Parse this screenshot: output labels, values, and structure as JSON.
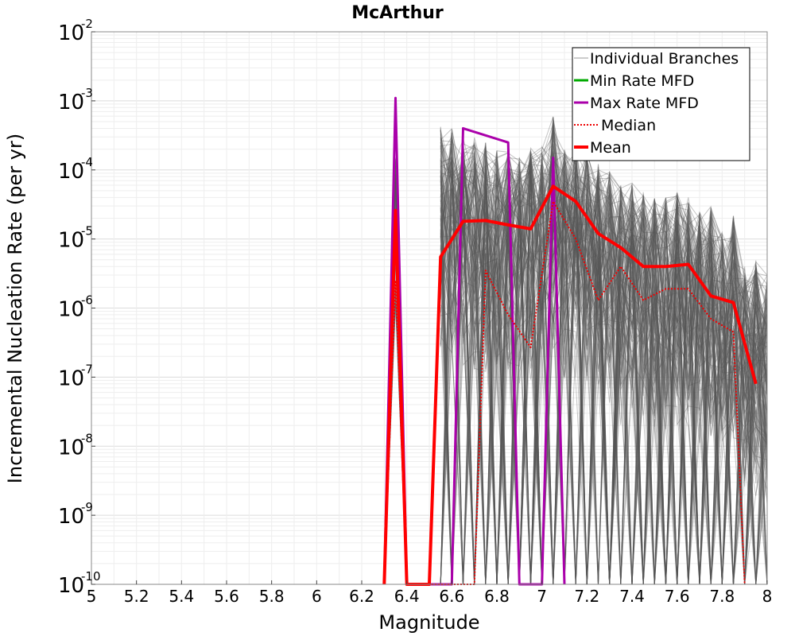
{
  "chart_data": {
    "type": "line",
    "title": "McArthur",
    "xlabel": "Magnitude",
    "ylabel": "Incremental Nucleation Rate (per yr)",
    "xlim": [
      5,
      8
    ],
    "ylim_exponents": [
      -10,
      -2
    ],
    "yscale": "log",
    "x_ticks": [
      "5",
      "5.2",
      "5.4",
      "5.6",
      "5.8",
      "6",
      "6.2",
      "6.4",
      "6.6",
      "6.8",
      "7",
      "7.2",
      "7.4",
      "7.6",
      "7.8",
      "8"
    ],
    "y_tick_base": "10",
    "y_tick_exponents": [
      "-10",
      "-9",
      "-8",
      "-7",
      "-6",
      "-5",
      "-4",
      "-3",
      "-2"
    ],
    "grid": true,
    "legend_position": "top-right",
    "legend": {
      "branches": "Individual Branches",
      "min": "Min Rate MFD",
      "max": "Max Rate MFD",
      "median": "Median",
      "mean": "Mean"
    },
    "colors": {
      "branches": "#555555",
      "branches_legend": "#bbbbbb",
      "min": "#00aa00",
      "max": "#aa00aa",
      "median": "#ee0000",
      "mean": "#ff0000"
    },
    "series": [
      {
        "name": "Max Rate MFD",
        "x": [
          6.3,
          6.35,
          6.4,
          6.6,
          6.65,
          6.85,
          6.9,
          7.0,
          7.05,
          7.1
        ],
        "y": [
          1e-10,
          0.0011,
          1e-10,
          1e-10,
          0.0004,
          0.00025,
          1e-10,
          1e-10,
          0.00015,
          1e-10
        ]
      },
      {
        "name": "Median",
        "x": [
          6.3,
          6.35,
          6.4,
          6.7,
          6.75,
          6.85,
          6.95,
          7.05,
          7.15,
          7.25,
          7.35,
          7.45,
          7.55,
          7.65,
          7.75,
          7.85,
          7.9
        ],
        "y": [
          1e-10,
          2.5e-06,
          1e-10,
          1e-10,
          3.5e-06,
          8e-07,
          2.7e-07,
          3.5e-05,
          1e-05,
          1.3e-06,
          4e-06,
          1.3e-06,
          1.9e-06,
          1.9e-06,
          7e-07,
          4.5e-07,
          1e-10
        ]
      },
      {
        "name": "Mean",
        "x": [
          6.3,
          6.35,
          6.4,
          6.5,
          6.55,
          6.65,
          6.75,
          6.85,
          6.95,
          7.05,
          7.15,
          7.25,
          7.35,
          7.45,
          7.55,
          7.65,
          7.75,
          7.85,
          7.95
        ],
        "y": [
          1e-10,
          2.6e-05,
          1e-10,
          1e-10,
          5.5e-06,
          1.8e-05,
          1.85e-05,
          1.6e-05,
          1.4e-05,
          5.8e-05,
          3.5e-05,
          1.2e-05,
          7.5e-06,
          4e-06,
          4e-06,
          4.3e-06,
          1.5e-06,
          1.2e-06,
          8e-08
        ]
      }
    ],
    "branch_envelope": {
      "x": [
        6.55,
        6.6,
        6.65,
        6.7,
        6.75,
        6.8,
        6.85,
        6.9,
        6.95,
        7.0,
        7.05,
        7.1,
        7.15,
        7.2,
        7.25,
        7.3,
        7.35,
        7.4,
        7.45,
        7.5,
        7.55,
        7.6,
        7.65,
        7.7,
        7.75,
        7.8,
        7.85,
        7.9,
        7.95,
        8.0
      ],
      "upper": [
        0.0005,
        0.0004,
        0.0003,
        0.0003,
        0.00025,
        0.0002,
        0.0002,
        0.00016,
        0.00023,
        0.00022,
        0.0006,
        0.0002,
        0.00023,
        0.0002,
        0.00013,
        0.0001,
        6e-05,
        7e-05,
        5e-05,
        4e-05,
        4e-05,
        5e-05,
        4e-05,
        2.5e-05,
        3e-05,
        1.3e-05,
        2.5e-05,
        4e-06,
        5e-06,
        3e-06
      ],
      "spike_at": 6.35,
      "spike_peak": 0.00016
    }
  }
}
